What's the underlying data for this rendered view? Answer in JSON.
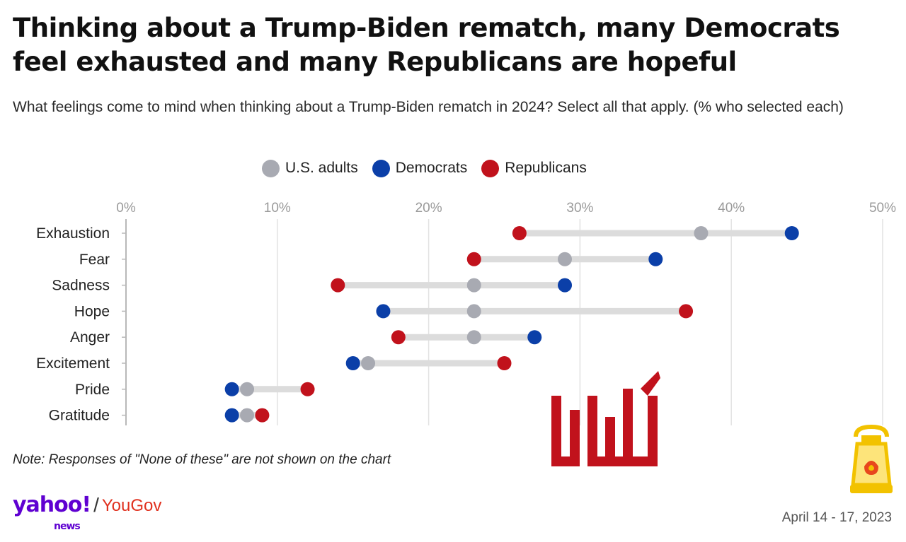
{
  "header": {
    "title_line1": "Thinking about a Trump-Biden rematch, many Democrats",
    "title_line2": "feel exhausted and many Republicans are hopeful",
    "subtitle": "What feelings come to mind when thinking about a Trump-Biden rematch in 2024? Select all that apply. (% who selected each)"
  },
  "legend": [
    {
      "label": "U.S. adults",
      "color": "#a8aab2"
    },
    {
      "label": "Democrats",
      "color": "#0b3fa8"
    },
    {
      "label": "Republicans",
      "color": "#c1121c"
    }
  ],
  "chart_data": {
    "type": "dumbbell",
    "title": "Thinking about a Trump-Biden rematch, many Democrats feel exhausted and many Republicans are hopeful",
    "xlabel": "",
    "ylabel": "",
    "xlim": [
      0,
      50
    ],
    "x_ticks": [
      "0%",
      "10%",
      "20%",
      "30%",
      "40%",
      "50%"
    ],
    "x_tick_values": [
      0,
      10,
      20,
      30,
      40,
      50
    ],
    "categories": [
      "Exhaustion",
      "Fear",
      "Sadness",
      "Hope",
      "Anger",
      "Excitement",
      "Pride",
      "Gratitude"
    ],
    "series": [
      {
        "name": "U.S. adults",
        "color": "#a8aab2",
        "values": [
          38,
          29,
          23,
          23,
          23,
          16,
          8,
          8
        ]
      },
      {
        "name": "Democrats",
        "color": "#0b3fa8",
        "values": [
          44,
          35,
          29,
          17,
          27,
          15,
          7,
          7
        ]
      },
      {
        "name": "Republicans",
        "color": "#c1121c",
        "values": [
          26,
          23,
          14,
          37,
          18,
          25,
          12,
          9
        ]
      }
    ],
    "grid": true
  },
  "footer": {
    "note": "Note: Responses of \"None of these\" are not shown on the chart",
    "yahoo": "yahoo!",
    "news": "news",
    "slash": "/",
    "yougov": "YouGov",
    "date": "April 14 - 17, 2023"
  },
  "icons": {
    "watermark": "arabic-calligraphy-logo",
    "lantern": "lantern-icon"
  }
}
